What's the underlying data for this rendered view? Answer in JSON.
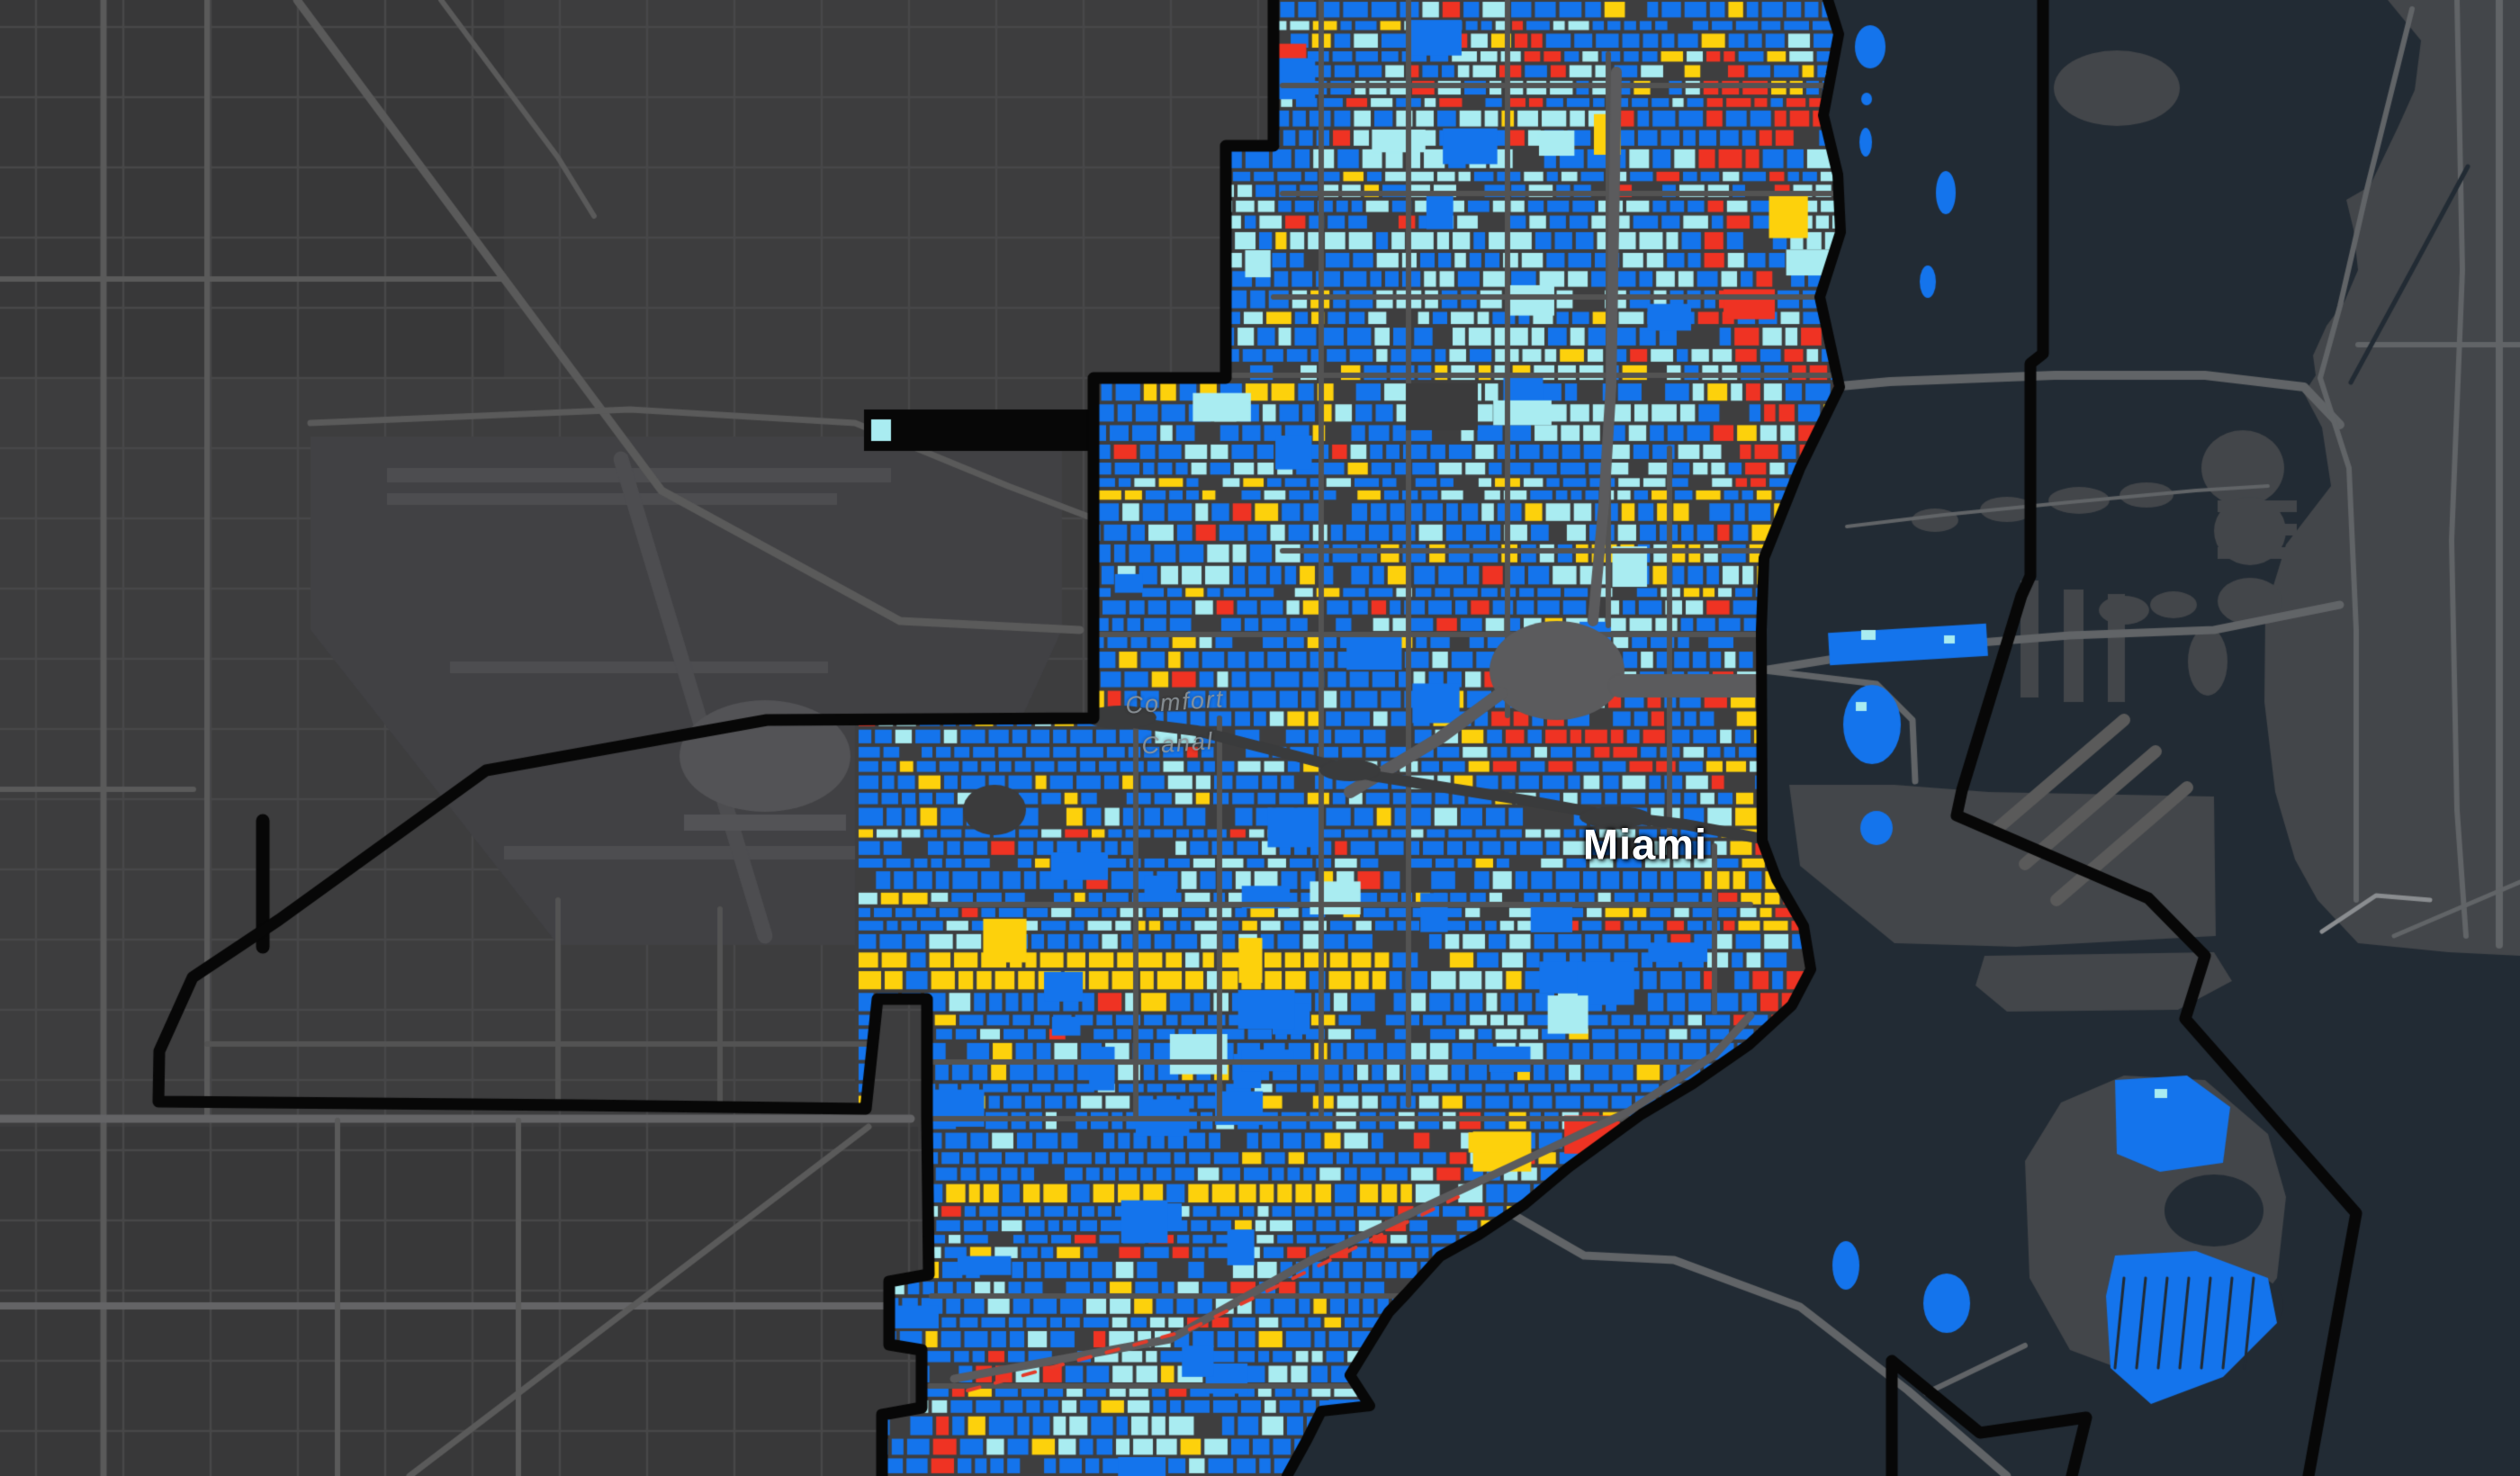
{
  "labels": {
    "city": "Miami",
    "canal_line1": "Comfort",
    "canal_line2": "Canal"
  },
  "colors": {
    "land": "#3d3d3e",
    "land_block_dark": "#383839",
    "land_grid": "#474749",
    "road": "#5a5a5a",
    "road_bright": "#646466",
    "water": "#222b34",
    "beach_land": "#43464a",
    "beach_road": "#616467",
    "airport_field": "#414144",
    "airport_strip": "#4d4d50",
    "airport_terminal": "#535356",
    "boundary": "#070707",
    "parcel_blue": "#1474ec",
    "parcel_cyan": "#a9ecf1",
    "parcel_yellow": "#fdd10c",
    "parcel_red": "#ef3323",
    "city_bg": "#3e3e3f",
    "city_arterial": "#535353",
    "city_highway": "#5b5b5d",
    "river": "#3a3b3c",
    "park": "#3b3b3c",
    "rail_red": "#e23b2a",
    "label_city": "#ffffff",
    "label_water": "#8b9398"
  }
}
